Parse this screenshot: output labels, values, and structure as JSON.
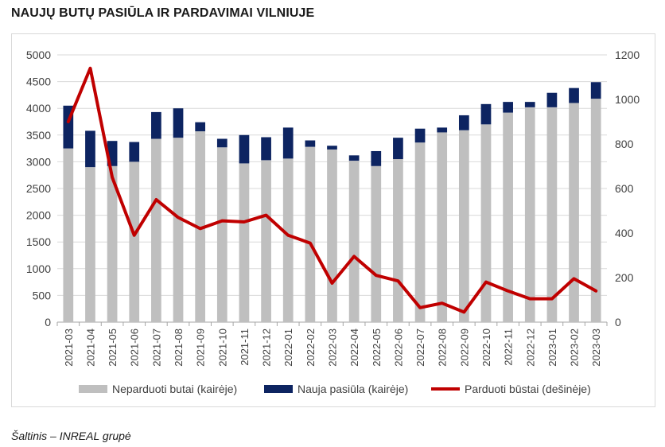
{
  "title": "NAUJŲ BUTŲ PASIŪLA IR PARDAVIMAI VILNIUJE",
  "source": "Šaltinis – INREAL grupė",
  "colors": {
    "unsold": "#bfbfbf",
    "new_supply": "#0d2461",
    "sold": "#c00000",
    "grid": "#d9d9d9",
    "axis_text": "#404040"
  },
  "chart_data": {
    "type": "bar",
    "categories": [
      "2021-03",
      "2021-04",
      "2021-05",
      "2021-06",
      "2021-07",
      "2021-08",
      "2021-09",
      "2021-10",
      "2021-11",
      "2021-12",
      "2022-01",
      "2022-02",
      "2022-03",
      "2022-04",
      "2022-05",
      "2022-06",
      "2022-07",
      "2022-08",
      "2022-09",
      "2022-10",
      "2022-11",
      "2022-12",
      "2023-01",
      "2023-02",
      "2023-03"
    ],
    "series": [
      {
        "name": "Neparduoti butai (kairėje)",
        "kind": "stacked-bar",
        "axis": "left",
        "values": [
          3250,
          2900,
          2920,
          3000,
          3430,
          3450,
          3570,
          3270,
          2970,
          3030,
          3060,
          3280,
          3230,
          3020,
          2920,
          3050,
          3360,
          3550,
          3590,
          3700,
          3920,
          4020,
          4020,
          4100,
          4180
        ]
      },
      {
        "name": "Nauja pasiūla (kairėje)",
        "kind": "stacked-bar",
        "axis": "left",
        "values": [
          800,
          680,
          470,
          370,
          500,
          550,
          170,
          160,
          530,
          430,
          580,
          120,
          70,
          100,
          280,
          400,
          260,
          90,
          280,
          380,
          200,
          100,
          270,
          280,
          310
        ]
      },
      {
        "name": "Parduoti būstai (dešinėje)",
        "kind": "line",
        "axis": "right",
        "values": [
          900,
          1140,
          650,
          390,
          550,
          470,
          420,
          455,
          450,
          480,
          390,
          355,
          175,
          295,
          210,
          185,
          65,
          85,
          45,
          180,
          140,
          105,
          105,
          195,
          140
        ]
      }
    ],
    "yleft": {
      "lim": [
        0,
        5000
      ],
      "ticks": [
        "0",
        "500",
        "1000",
        "1500",
        "2000",
        "2500",
        "3000",
        "3500",
        "4000",
        "4500",
        "5000"
      ]
    },
    "yright": {
      "lim": [
        0,
        1200
      ],
      "ticks": [
        "0",
        "200",
        "400",
        "600",
        "800",
        "1000",
        "1200"
      ]
    },
    "grid": true,
    "legend": "bottom"
  }
}
